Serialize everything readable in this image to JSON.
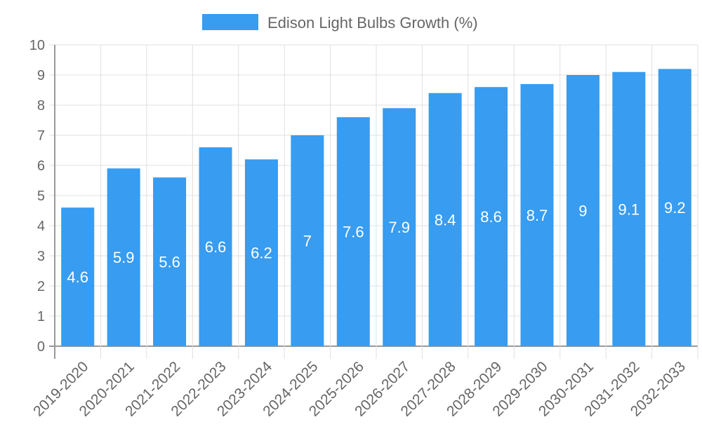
{
  "chart_data": {
    "type": "bar",
    "title": "",
    "legend": [
      {
        "label": "Edison Light Bulbs Growth (%)",
        "color": "#389cf0"
      }
    ],
    "legend_position": "top-center",
    "categories": [
      "2019-2020",
      "2020-2021",
      "2021-2022",
      "2022-2023",
      "2023-2024",
      "2024-2025",
      "2025-2026",
      "2026-2027",
      "2027-2028",
      "2028-2029",
      "2029-2030",
      "2030-2031",
      "2031-2032",
      "2032-2033"
    ],
    "series": [
      {
        "name": "Edison Light Bulbs Growth (%)",
        "values": [
          4.6,
          5.9,
          5.6,
          6.6,
          6.2,
          7,
          7.6,
          7.9,
          8.4,
          8.6,
          8.7,
          9,
          9.1,
          9.2
        ]
      }
    ],
    "data_labels": [
      "4.6",
      "5.9",
      "5.6",
      "6.6",
      "6.2",
      "7",
      "7.6",
      "7.9",
      "8.4",
      "8.6",
      "8.7",
      "9",
      "9.1",
      "9.2"
    ],
    "y_ticks": [
      "0",
      "1",
      "2",
      "3",
      "4",
      "5",
      "6",
      "7",
      "8",
      "9",
      "10"
    ],
    "xlabel": "",
    "ylabel": "",
    "ylim": [
      0,
      10
    ],
    "grid": true
  }
}
